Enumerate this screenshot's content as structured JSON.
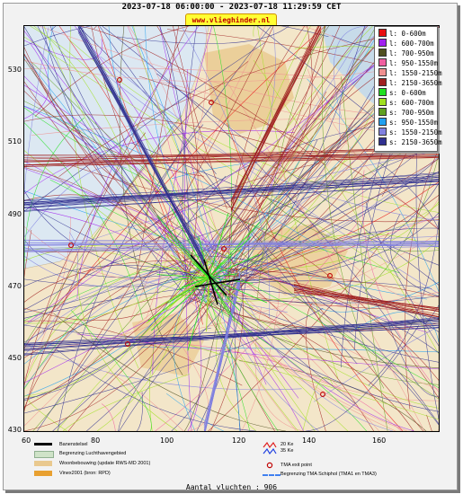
{
  "header": {
    "title": "2023-07-18 06:00:00 - 2023-07-18 11:29:59 CET",
    "brand": "www.vlieghinder.nl"
  },
  "map": {
    "y_ticks": [
      "530",
      "510",
      "490",
      "470",
      "450",
      "430"
    ],
    "x_ticks": [
      "60",
      "80",
      "100",
      "120",
      "140",
      "160"
    ],
    "land_color": "#f3e6c9",
    "water_color": "#dce8f2"
  },
  "legend": {
    "items": [
      {
        "label": "l: 0-600m",
        "color": "#e81010"
      },
      {
        "label": "l: 600-700m",
        "color": "#a020f0"
      },
      {
        "label": "l: 700-950m",
        "color": "#505020"
      },
      {
        "label": "l: 950-1550m",
        "color": "#f060a0"
      },
      {
        "label": "l: 1550-2150m",
        "color": "#f09090"
      },
      {
        "label": "l: 2150-3650m",
        "color": "#a02020"
      },
      {
        "label": "s: 0-600m",
        "color": "#20e020"
      },
      {
        "label": "s: 600-700m",
        "color": "#a0e020"
      },
      {
        "label": "s: 700-950m",
        "color": "#60a020"
      },
      {
        "label": "s: 950-1550m",
        "color": "#20a0f0"
      },
      {
        "label": "s: 1550-2150m",
        "color": "#8080e0"
      },
      {
        "label": "s: 2150-3650m",
        "color": "#303090"
      }
    ]
  },
  "bottom_legend": {
    "runway": "Banenstelsel",
    "airport_boundary": "Begrenzing Luchthavengebied",
    "housing": "Woonbebouwing (update RWS-MD 2001)",
    "vinex": "Vinex2001 (bron: RPD)",
    "contour_20": "20 Ke",
    "contour_35": "35 Ke",
    "tma_exit": "TMA exit point",
    "tma_boundary": "Begrenzing TMA Schiphol  (TMA1 en TMA3)"
  },
  "footer": {
    "count": "Aantal vluchten : 906"
  }
}
